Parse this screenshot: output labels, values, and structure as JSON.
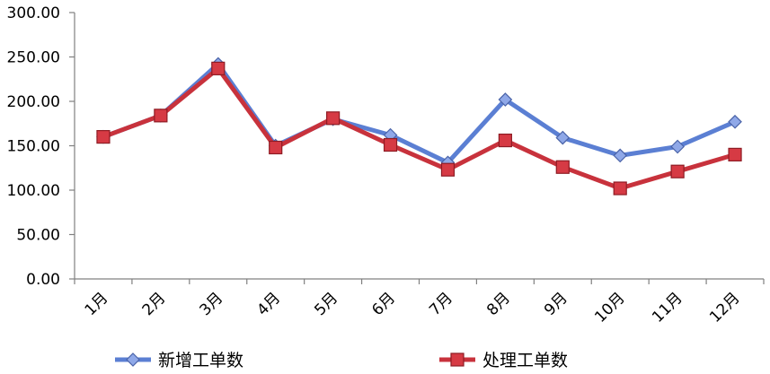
{
  "chart_data": {
    "type": "line",
    "categories": [
      "1月",
      "2月",
      "3月",
      "4月",
      "5月",
      "6月",
      "7月",
      "8月",
      "9月",
      "10月",
      "11月",
      "12月"
    ],
    "series": [
      {
        "name": "新增工单数",
        "values": [
          160,
          184,
          242,
          150,
          180,
          162,
          131,
          202,
          159,
          139,
          149,
          177
        ],
        "color": "#5b7fd3",
        "marker": "diamond"
      },
      {
        "name": "处理工单数",
        "values": [
          160,
          184,
          237,
          148,
          181,
          151,
          123,
          156,
          126,
          102,
          121,
          140
        ],
        "color": "#c8323c",
        "marker": "square"
      }
    ],
    "ylim": [
      0,
      300
    ],
    "yticks": [
      "0.00",
      "50.00",
      "100.00",
      "150.00",
      "200.00",
      "250.00",
      "300.00"
    ],
    "grid": false,
    "legend_position": "bottom",
    "title": "",
    "xlabel": "",
    "ylabel": ""
  }
}
